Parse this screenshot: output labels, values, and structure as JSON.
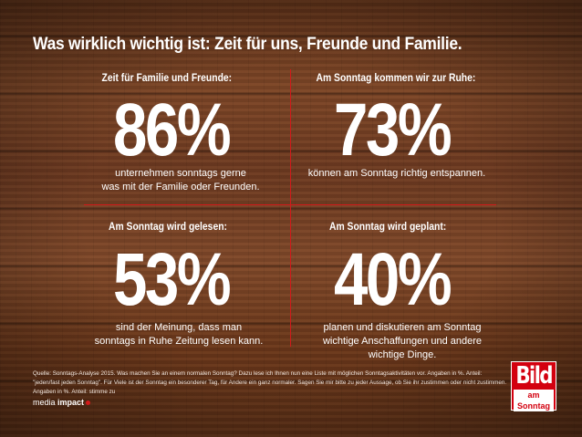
{
  "title": "Was wirklich wichtig ist: Zeit für uns, Freunde und Familie.",
  "stats": [
    {
      "heading": "Zeit für Familie und Freunde:",
      "value": "86%",
      "description_line1": "unternehmen sonntags gerne",
      "description_line2": "was mit der Familie oder Freunden."
    },
    {
      "heading": "Am Sonntag kommen wir zur Ruhe:",
      "value": "73%",
      "description_line1": "können am Sonntag richtig entspannen.",
      "description_line2": ""
    },
    {
      "heading": "Am Sonntag wird gelesen:",
      "value": "53%",
      "description_line1": "sind der Meinung, dass man",
      "description_line2": "sonntags in Ruhe Zeitung lesen kann."
    },
    {
      "heading": "Am Sonntag wird geplant:",
      "value": "40%",
      "description_line1": "planen und diskutieren am Sonntag",
      "description_line2": "wichtige Anschaffungen und andere",
      "description_line3": "wichtige Dinge."
    }
  ],
  "source": "Quelle: Sonntags-Analyse 2015. Was machen Sie an einem normalen Sonntag? Dazu lese ich Ihnen nun eine Liste mit möglichen Sonntagsaktivitäten vor. Angaben in %. Anteil: \"jeden/fast jeden Sonntag\". Für Viele ist der Sonntag ein besonderer Tag, für Andere ein ganz normaler. Sagen Sie mir bitte zu jeder Aussage, ob Sie ihr zustimmen oder nicht zustimmen. Angaben in %. Anteil: stimme zu",
  "brand": {
    "prefix": "media",
    "name": "impact"
  },
  "logo": {
    "main": "Bild",
    "sub": "am Sonntag"
  },
  "colors": {
    "accent_red": "#d21a1a",
    "logo_red": "#d3000f",
    "text": "#ffffff"
  }
}
